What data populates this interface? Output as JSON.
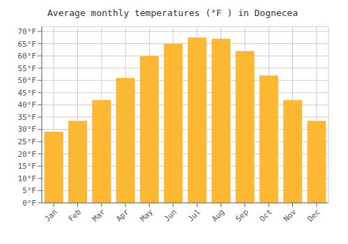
{
  "chart_data": {
    "type": "bar",
    "title": "Average monthly temperatures (°F ) in Dognecea",
    "categories": [
      "Jan",
      "Feb",
      "Mar",
      "Apr",
      "May",
      "Jun",
      "Jul",
      "Aug",
      "Sep",
      "Oct",
      "Nov",
      "Dec"
    ],
    "values": [
      29.0,
      33.5,
      42.0,
      51.0,
      60.0,
      65.0,
      67.5,
      67.0,
      62.0,
      52.0,
      42.0,
      33.5
    ],
    "color": "#FDB833",
    "ylim": [
      0,
      72
    ],
    "yticks": [
      {
        "value": 0,
        "label": "0°F"
      },
      {
        "value": 5,
        "label": "5°F"
      },
      {
        "value": 10,
        "label": "10°F"
      },
      {
        "value": 15,
        "label": "15°F"
      },
      {
        "value": 20,
        "label": "20°F"
      },
      {
        "value": 25,
        "label": "25°F"
      },
      {
        "value": 30,
        "label": "30°F"
      },
      {
        "value": 35,
        "label": "35°F"
      },
      {
        "value": 40,
        "label": "40°F"
      },
      {
        "value": 45,
        "label": "45°F"
      },
      {
        "value": 50,
        "label": "50°F"
      },
      {
        "value": 55,
        "label": "55°F"
      },
      {
        "value": 60,
        "label": "60°F"
      },
      {
        "value": 65,
        "label": "65°F"
      },
      {
        "value": 70,
        "label": "70°F"
      }
    ],
    "grid": true
  }
}
